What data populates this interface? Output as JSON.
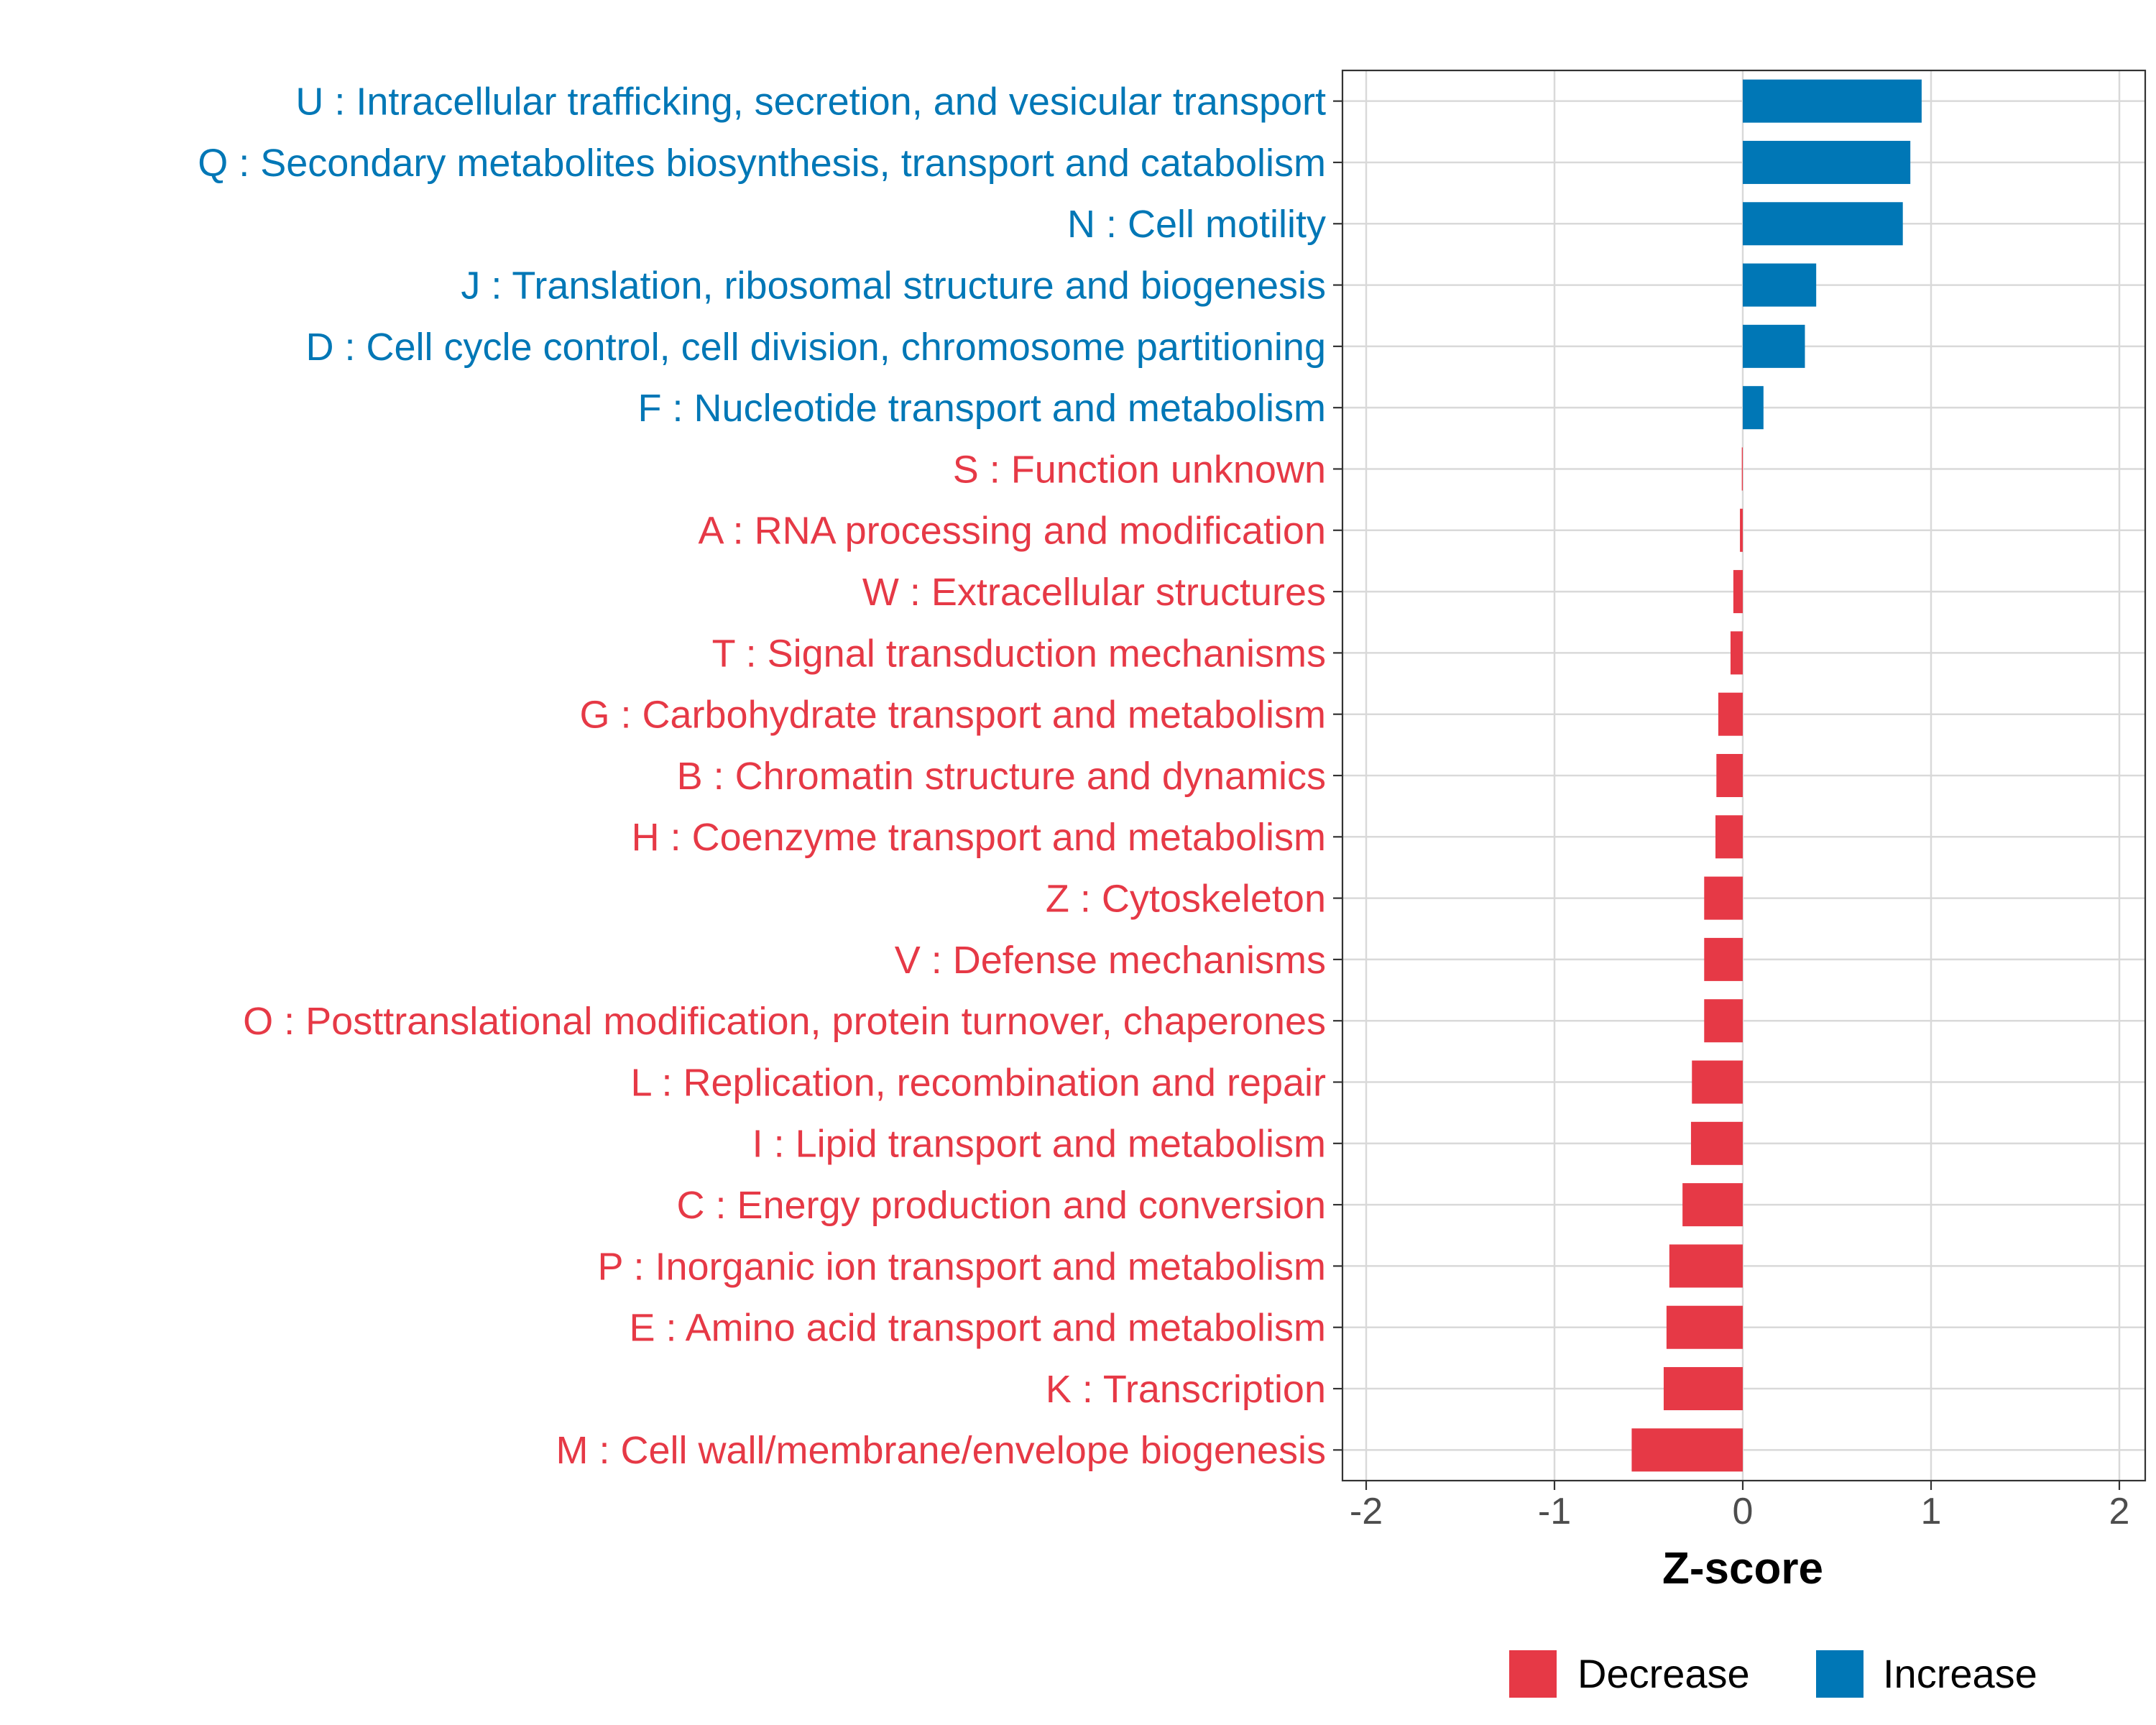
{
  "chart_data": {
    "type": "bar",
    "orientation": "horizontal",
    "title": "",
    "xlabel": "Z-score",
    "ylabel": "",
    "xlim": [
      -2.1,
      2.1
    ],
    "xticks": [
      -2,
      -1,
      0,
      1,
      2
    ],
    "xtick_labels": [
      "-2",
      "-1",
      "0",
      "1",
      "2"
    ],
    "grid": true,
    "legend_position": "bottom",
    "colors": {
      "Decrease": "#E63946",
      "Increase": "#0077B6"
    },
    "legend": [
      {
        "label": "Decrease",
        "color": "#E63946"
      },
      {
        "label": "Increase",
        "color": "#0077B6"
      }
    ],
    "categories": [
      "U : Intracellular trafficking, secretion, and vesicular transport",
      "Q : Secondary metabolites biosynthesis, transport and catabolism",
      "N : Cell motility",
      "J : Translation, ribosomal structure and biogenesis",
      "D : Cell cycle control, cell division, chromosome partitioning",
      "F : Nucleotide transport and metabolism",
      "S : Function unknown",
      "A : RNA processing and modification",
      "W : Extracellular structures",
      "T : Signal transduction mechanisms",
      "G : Carbohydrate transport and metabolism",
      "B : Chromatin structure and dynamics",
      "H : Coenzyme transport and metabolism",
      "Z : Cytoskeleton",
      "V : Defense mechanisms",
      "O : Posttranslational modification, protein turnover, chaperones",
      "L : Replication, recombination and repair",
      "I : Lipid transport and metabolism",
      "C : Energy production and conversion",
      "P : Inorganic ion transport and metabolism",
      "E : Amino acid transport and metabolism",
      "K : Transcription",
      "M : Cell wall/membrane/envelope biogenesis"
    ],
    "values": [
      0.95,
      0.89,
      0.85,
      0.39,
      0.33,
      0.11,
      -0.005,
      -0.015,
      -0.05,
      -0.065,
      -0.13,
      -0.14,
      -0.145,
      -0.205,
      -0.205,
      -0.205,
      -0.27,
      -0.275,
      -0.32,
      -0.39,
      -0.405,
      -0.42,
      -0.59
    ],
    "groups": [
      "Increase",
      "Increase",
      "Increase",
      "Increase",
      "Increase",
      "Increase",
      "Decrease",
      "Decrease",
      "Decrease",
      "Decrease",
      "Decrease",
      "Decrease",
      "Decrease",
      "Decrease",
      "Decrease",
      "Decrease",
      "Decrease",
      "Decrease",
      "Decrease",
      "Decrease",
      "Decrease",
      "Decrease",
      "Decrease"
    ]
  }
}
